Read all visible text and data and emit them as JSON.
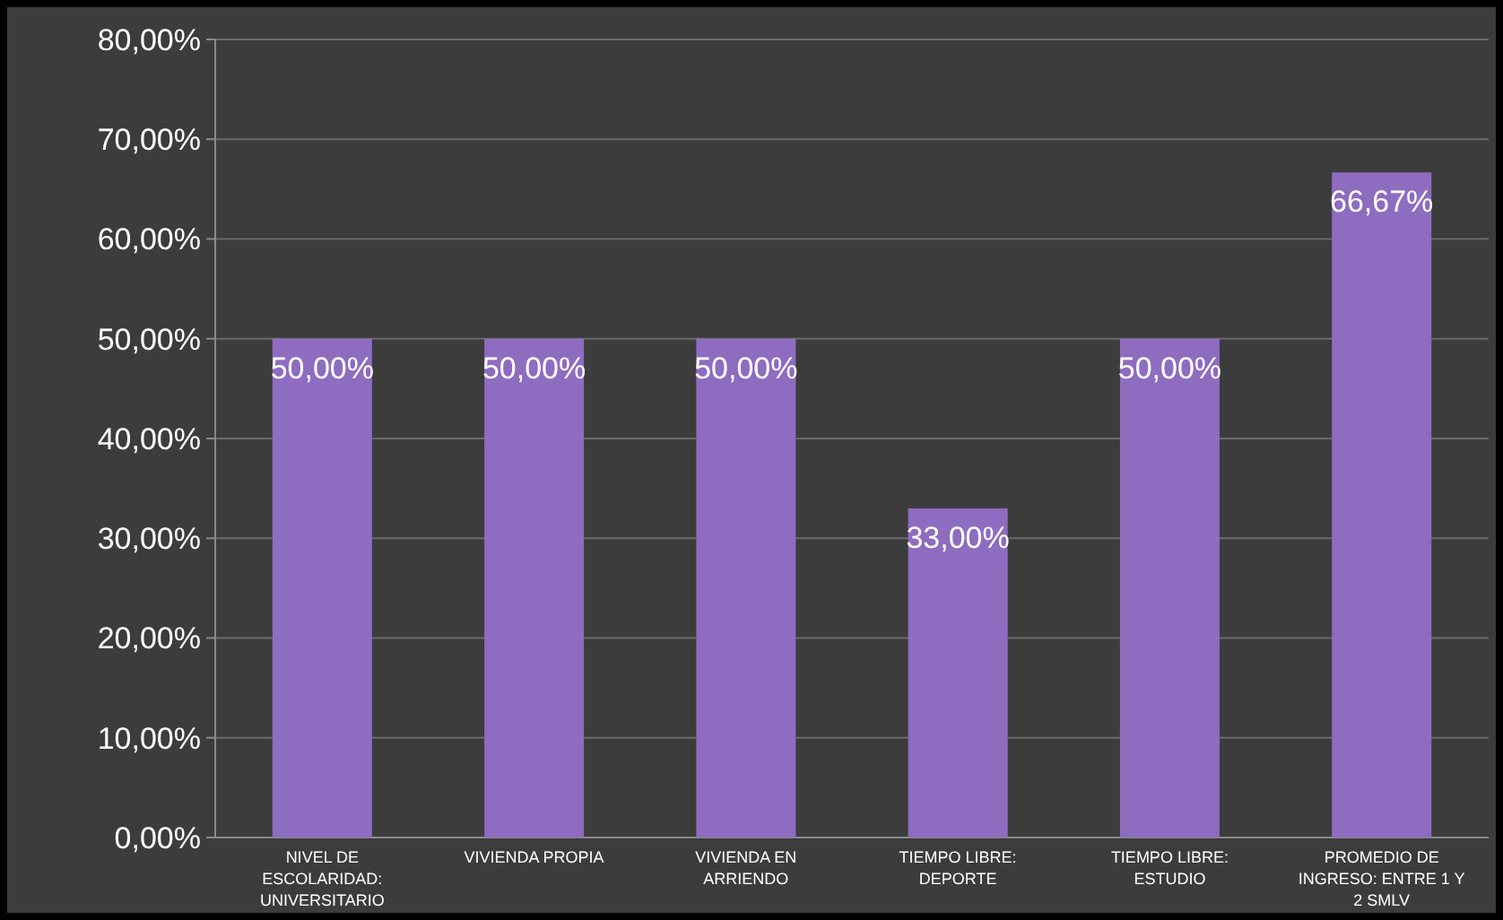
{
  "chart_data": {
    "type": "bar",
    "categories": [
      "NIVEL DE ESCOLARIDAD: UNIVERSITARIO",
      "VIVIENDA PROPIA",
      "VIVIENDA EN ARRIENDO",
      "TIEMPO LIBRE: DEPORTE",
      "TIEMPO LIBRE: ESTUDIO",
      "PROMEDIO DE INGRESO: ENTRE 1 Y 2 SMLV"
    ],
    "values": [
      50,
      50,
      50,
      33,
      50,
      66.67
    ],
    "value_labels": [
      "50,00%",
      "50,00%",
      "50,00%",
      "33,00%",
      "50,00%",
      "66,67%"
    ],
    "color": "#8e6cc0",
    "ylim": [
      0,
      80
    ],
    "yticks": [
      {
        "value": 0,
        "label": "0,00%"
      },
      {
        "value": 10,
        "label": "10,00%"
      },
      {
        "value": 20,
        "label": "20,00%"
      },
      {
        "value": 30,
        "label": "30,00%"
      },
      {
        "value": 40,
        "label": "40,00%"
      },
      {
        "value": 50,
        "label": "50,00%"
      },
      {
        "value": 60,
        "label": "60,00%"
      },
      {
        "value": 70,
        "label": "70,00%"
      },
      {
        "value": 80,
        "label": "80,00%"
      }
    ],
    "grid": "y"
  }
}
